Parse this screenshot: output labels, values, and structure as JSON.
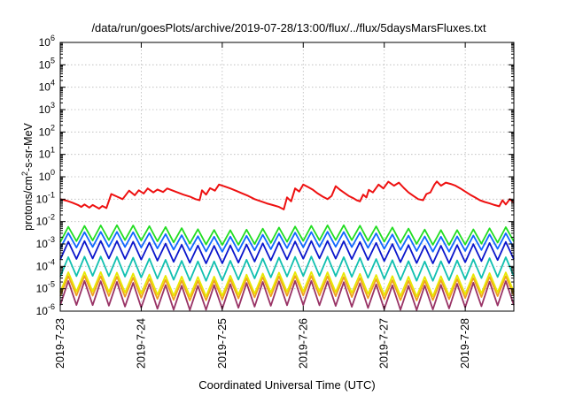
{
  "chart_data": {
    "type": "line",
    "title": "/data/run/goesPlots/archive/2019-07-28/13:00/flux/../flux/5daysMarsFluxes.txt",
    "xlabel": "Coordinated Universal Time (UTC)",
    "ylabel": {
      "main": "protons/cm",
      "sup": "2",
      "rest": "-s-sr-MeV"
    },
    "x_ticks": [
      "2019-7-23",
      "2019-7-24",
      "2019-7-25",
      "2019-7-26",
      "2019-7-27",
      "2019-7-28"
    ],
    "y_scale": "log",
    "ylim": [
      1e-06,
      1000000.0
    ],
    "xlim_days": [
      0,
      5.6
    ],
    "grid": true,
    "y_ticks": [
      {
        "value": 1e-06,
        "base": "10",
        "exp": "-6"
      },
      {
        "value": 1e-05,
        "base": "10",
        "exp": "-5"
      },
      {
        "value": 0.0001,
        "base": "10",
        "exp": "-4"
      },
      {
        "value": 0.001,
        "base": "10",
        "exp": "-3"
      },
      {
        "value": 0.01,
        "base": "10",
        "exp": "-2"
      },
      {
        "value": 0.1,
        "base": "10",
        "exp": "-1"
      },
      {
        "value": 1,
        "base": "10",
        "exp": "0"
      },
      {
        "value": 10,
        "base": "10",
        "exp": "1"
      },
      {
        "value": 100,
        "base": "10",
        "exp": "2"
      },
      {
        "value": 1000,
        "base": "10",
        "exp": "3"
      },
      {
        "value": 10000,
        "base": "10",
        "exp": "4"
      },
      {
        "value": 100000,
        "base": "10",
        "exp": "5"
      },
      {
        "value": 1000000,
        "base": "10",
        "exp": "6"
      }
    ],
    "series": [
      {
        "color": "#ee1111",
        "values": [
          [
            0.0,
            0.1
          ],
          [
            0.08,
            0.085
          ],
          [
            0.15,
            0.07
          ],
          [
            0.22,
            0.055
          ],
          [
            0.26,
            0.045
          ],
          [
            0.3,
            0.058
          ],
          [
            0.36,
            0.042
          ],
          [
            0.4,
            0.055
          ],
          [
            0.48,
            0.038
          ],
          [
            0.52,
            0.05
          ],
          [
            0.57,
            0.04
          ],
          [
            0.63,
            0.17
          ],
          [
            0.7,
            0.13
          ],
          [
            0.77,
            0.1
          ],
          [
            0.85,
            0.24
          ],
          [
            0.92,
            0.15
          ],
          [
            0.97,
            0.25
          ],
          [
            1.03,
            0.18
          ],
          [
            1.08,
            0.3
          ],
          [
            1.15,
            0.2
          ],
          [
            1.2,
            0.27
          ],
          [
            1.27,
            0.21
          ],
          [
            1.32,
            0.3
          ],
          [
            1.42,
            0.22
          ],
          [
            1.52,
            0.16
          ],
          [
            1.6,
            0.13
          ],
          [
            1.67,
            0.1
          ],
          [
            1.72,
            0.09
          ],
          [
            1.75,
            0.25
          ],
          [
            1.8,
            0.16
          ],
          [
            1.85,
            0.31
          ],
          [
            1.91,
            0.24
          ],
          [
            1.96,
            0.45
          ],
          [
            2.03,
            0.37
          ],
          [
            2.1,
            0.3
          ],
          [
            2.18,
            0.23
          ],
          [
            2.25,
            0.18
          ],
          [
            2.32,
            0.14
          ],
          [
            2.4,
            0.1
          ],
          [
            2.48,
            0.08
          ],
          [
            2.55,
            0.065
          ],
          [
            2.62,
            0.055
          ],
          [
            2.7,
            0.045
          ],
          [
            2.76,
            0.035
          ],
          [
            2.8,
            0.12
          ],
          [
            2.85,
            0.08
          ],
          [
            2.9,
            0.3
          ],
          [
            2.95,
            0.22
          ],
          [
            3.0,
            0.45
          ],
          [
            3.06,
            0.35
          ],
          [
            3.12,
            0.26
          ],
          [
            3.18,
            0.18
          ],
          [
            3.24,
            0.13
          ],
          [
            3.3,
            0.1
          ],
          [
            3.35,
            0.14
          ],
          [
            3.4,
            0.38
          ],
          [
            3.45,
            0.27
          ],
          [
            3.5,
            0.2
          ],
          [
            3.56,
            0.14
          ],
          [
            3.62,
            0.11
          ],
          [
            3.66,
            0.09
          ],
          [
            3.7,
            0.08
          ],
          [
            3.74,
            0.16
          ],
          [
            3.78,
            0.12
          ],
          [
            3.81,
            0.26
          ],
          [
            3.86,
            0.2
          ],
          [
            3.93,
            0.45
          ],
          [
            3.99,
            0.3
          ],
          [
            4.05,
            0.6
          ],
          [
            4.12,
            0.4
          ],
          [
            4.18,
            0.55
          ],
          [
            4.24,
            0.32
          ],
          [
            4.3,
            0.2
          ],
          [
            4.36,
            0.14
          ],
          [
            4.42,
            0.1
          ],
          [
            4.48,
            0.09
          ],
          [
            4.52,
            0.17
          ],
          [
            4.57,
            0.2
          ],
          [
            4.62,
            0.45
          ],
          [
            4.65,
            0.62
          ],
          [
            4.7,
            0.4
          ],
          [
            4.76,
            0.55
          ],
          [
            4.82,
            0.48
          ],
          [
            4.88,
            0.4
          ],
          [
            4.94,
            0.3
          ],
          [
            5.0,
            0.22
          ],
          [
            5.06,
            0.16
          ],
          [
            5.12,
            0.12
          ],
          [
            5.18,
            0.09
          ],
          [
            5.24,
            0.075
          ],
          [
            5.3,
            0.065
          ],
          [
            5.36,
            0.055
          ],
          [
            5.42,
            0.048
          ],
          [
            5.46,
            0.09
          ],
          [
            5.5,
            0.058
          ],
          [
            5.55,
            0.1
          ],
          [
            5.6,
            0.07
          ]
        ]
      },
      {
        "color": "#22dd22",
        "low": 0.0012,
        "high": 0.0055,
        "phase": 0.0
      },
      {
        "color": "#1166ff",
        "low": 0.0006,
        "high": 0.0028,
        "phase": 0.02
      },
      {
        "color": "#0b16cc",
        "low": 0.00018,
        "high": 0.0011,
        "phase": 0.04
      },
      {
        "color": "#11c0b0",
        "low": 3e-05,
        "high": 0.00022,
        "phase": 0.06
      },
      {
        "color": "#e8e800",
        "low": 6e-06,
        "high": 4.5e-05,
        "phase": 0.08
      },
      {
        "color": "#f0a020",
        "low": 4e-06,
        "high": 3e-05,
        "phase": 0.09
      },
      {
        "color": "#993366",
        "low": 1.5e-06,
        "high": 1.8e-05,
        "phase": 0.1
      }
    ]
  }
}
